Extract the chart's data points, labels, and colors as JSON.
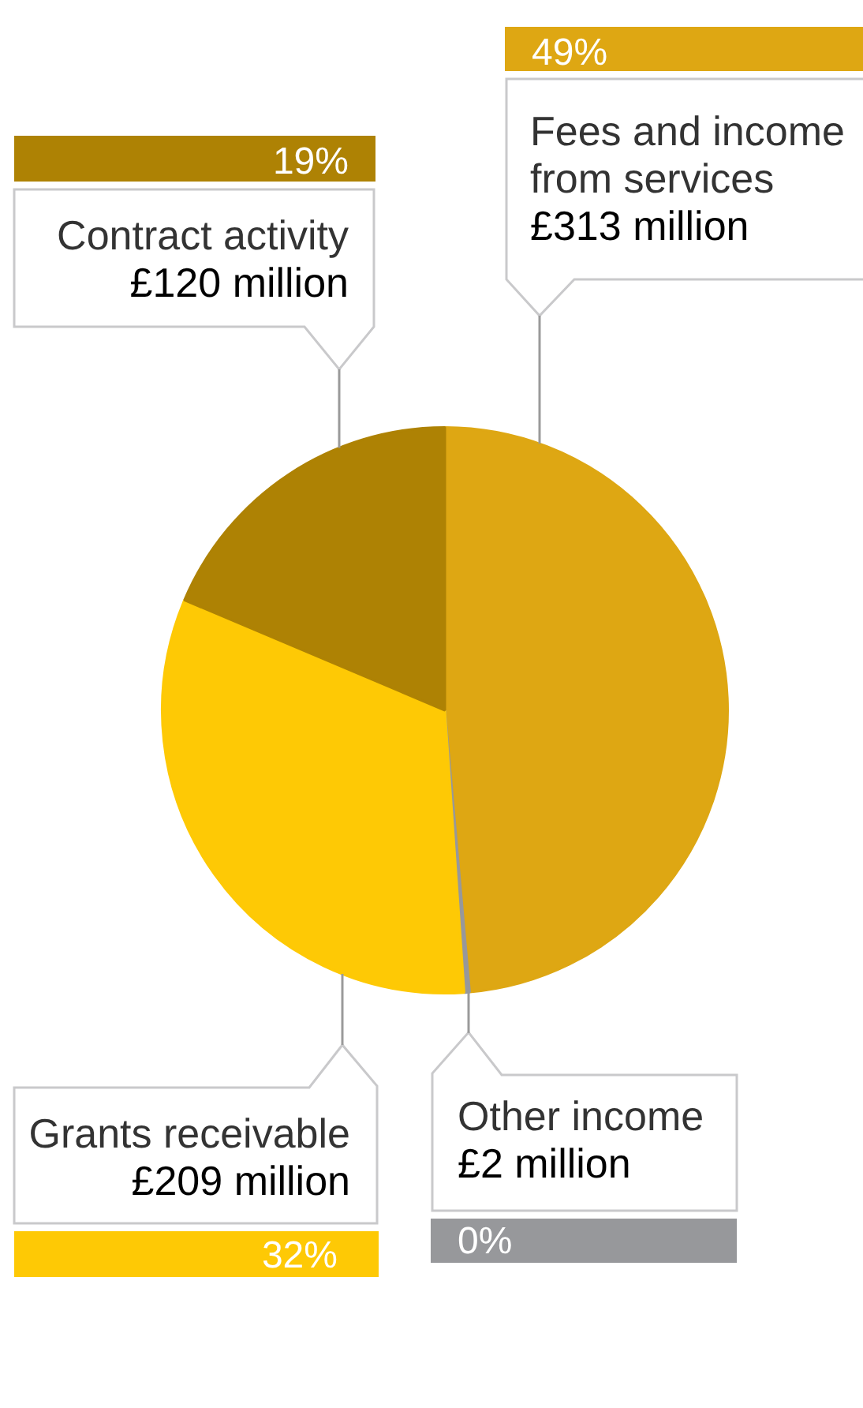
{
  "chart_data": {
    "type": "pie",
    "categories": [
      "Fees and income from services",
      "Other income",
      "Grants receivable",
      "Contract activity"
    ],
    "values": [
      313,
      2,
      209,
      120
    ],
    "colors": [
      "#dea713",
      "#97989b",
      "#fec905",
      "#ae8204"
    ],
    "value_labels": [
      "£313 million",
      "£2 million",
      "£209 million",
      "£120 million"
    ],
    "annotations": [
      "49%",
      "0%",
      "32%",
      "19%"
    ]
  }
}
